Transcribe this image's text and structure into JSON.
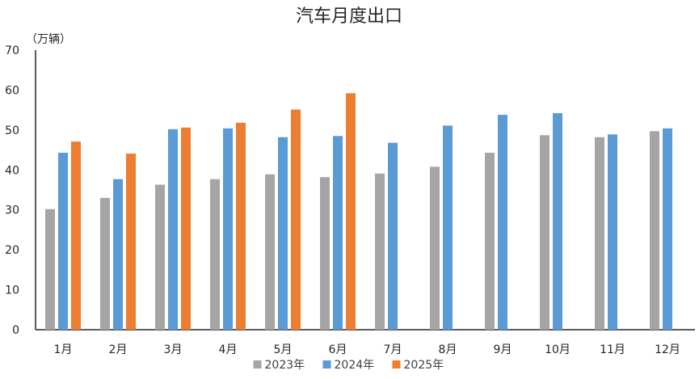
{
  "chart_data": {
    "type": "bar",
    "title": "汽车月度出口",
    "unit_label": "（万辆）",
    "categories": [
      "1月",
      "2月",
      "3月",
      "4月",
      "5月",
      "6月",
      "7月",
      "8月",
      "9月",
      "10月",
      "11月",
      "12月"
    ],
    "series": [
      {
        "name": "2023年",
        "color": "#A5A5A5",
        "values": [
          30.2,
          33.0,
          36.3,
          37.7,
          38.9,
          38.2,
          39.1,
          40.8,
          44.3,
          48.7,
          48.2,
          49.7
        ]
      },
      {
        "name": "2024年",
        "color": "#5B9BD5",
        "values": [
          44.3,
          37.7,
          50.2,
          50.4,
          48.2,
          48.5,
          46.8,
          51.1,
          53.8,
          54.2,
          48.9,
          50.4
        ]
      },
      {
        "name": "2025年",
        "color": "#ED7D31",
        "values": [
          47.1,
          44.1,
          50.6,
          51.8,
          55.1,
          59.2,
          null,
          null,
          null,
          null,
          null,
          null
        ]
      }
    ],
    "ylim": [
      0,
      70
    ],
    "yticks": [
      0,
      10,
      20,
      30,
      40,
      50,
      60,
      70
    ],
    "legend_position": "bottom",
    "grid": false
  }
}
